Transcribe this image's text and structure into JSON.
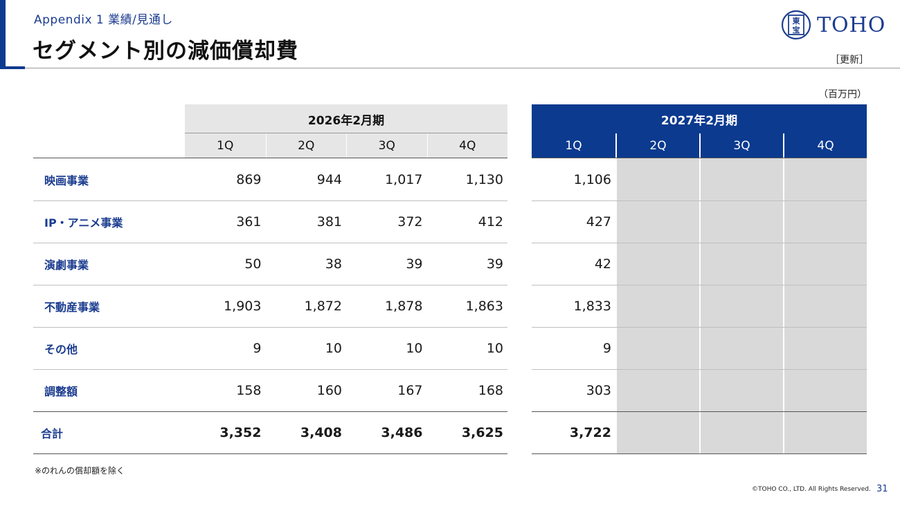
{
  "header": {
    "appendix_label": "Appendix 1  業績/見通し",
    "title": "セグメント別の減価償却費",
    "brand_text": "TOHO",
    "logo_mark_text": "東宝",
    "update_label": "［更新］",
    "unit_label": "（百万円）"
  },
  "table": {
    "periods": [
      {
        "label": "2026年2月期",
        "quarters": [
          "1Q",
          "2Q",
          "3Q",
          "4Q"
        ]
      },
      {
        "label": "2027年2月期",
        "quarters": [
          "1Q",
          "2Q",
          "3Q",
          "4Q"
        ]
      }
    ],
    "rows": [
      {
        "label": "映画事業",
        "fy2026": [
          "869",
          "944",
          "1,017",
          "1,130"
        ],
        "fy2027": [
          "1,106",
          "",
          "",
          ""
        ]
      },
      {
        "label": "IP・アニメ事業",
        "fy2026": [
          "361",
          "381",
          "372",
          "412"
        ],
        "fy2027": [
          "427",
          "",
          "",
          ""
        ]
      },
      {
        "label": "演劇事業",
        "fy2026": [
          "50",
          "38",
          "39",
          "39"
        ],
        "fy2027": [
          "42",
          "",
          "",
          ""
        ]
      },
      {
        "label": "不動産事業",
        "fy2026": [
          "1,903",
          "1,872",
          "1,878",
          "1,863"
        ],
        "fy2027": [
          "1,833",
          "",
          "",
          ""
        ]
      },
      {
        "label": "その他",
        "fy2026": [
          "9",
          "10",
          "10",
          "10"
        ],
        "fy2027": [
          "9",
          "",
          "",
          ""
        ]
      },
      {
        "label": "調整額",
        "fy2026": [
          "158",
          "160",
          "167",
          "168"
        ],
        "fy2027": [
          "303",
          "",
          "",
          ""
        ]
      },
      {
        "label": "合計",
        "fy2026": [
          "3,352",
          "3,408",
          "3,486",
          "3,625"
        ],
        "fy2027": [
          "3,722",
          "",
          "",
          ""
        ]
      }
    ]
  },
  "footer": {
    "footnote": "※のれんの償却額を除く",
    "copyright": "©TOHO CO., LTD. All Rights Reserved.",
    "page_number": "31"
  },
  "colors": {
    "brand_blue": "#0b3a8f",
    "header_gray": "#e6e6e6",
    "empty_cell_gray": "#d9d9d9",
    "label_blue": "#1b3c8f"
  }
}
